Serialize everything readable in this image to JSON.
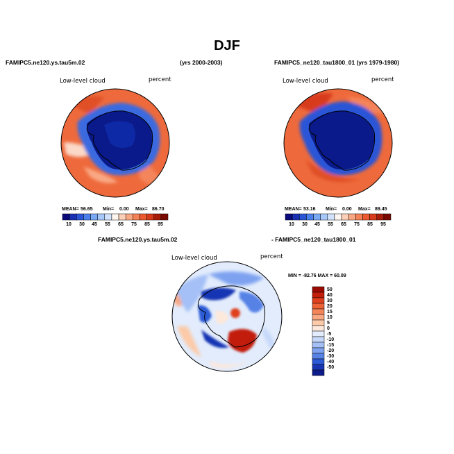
{
  "page": {
    "title": "DJF",
    "panel1": {
      "case": "FAMIPC5.ne120.ys.tau5m.02",
      "years": "(yrs 2000-2003)",
      "variable": "Low-level cloud",
      "units": "percent",
      "mean": "56.65",
      "min": "0.00",
      "max": "86.70"
    },
    "panel2": {
      "case": "FAMIPC5_ne120_tau1800_01 (yrs 1979-1980)",
      "variable": "Low-level cloud",
      "units": "percent",
      "mean": "53.16",
      "min": "0.00",
      "max": "89.45"
    },
    "panel3": {
      "case_a": "FAMIPC5.ne120.ys.tau5m.02",
      "case_b": "- FAMIPC5_ne120_tau1800_01",
      "variable": "Low-level cloud",
      "units": "percent",
      "minmax": "MIN = -82.76  MAX =  60.09"
    },
    "stat_labels": {
      "mean": "MEAN=",
      "min": "Min=",
      "max": "Max="
    },
    "colorbar_abs": {
      "ticks": [
        "10",
        "30",
        "45",
        "55",
        "65",
        "75",
        "85",
        "95"
      ],
      "colors": [
        "#0a0a7a",
        "#1a30b4",
        "#2a55d6",
        "#4a80ec",
        "#7aaaf6",
        "#a8c8fa",
        "#d2e2fc",
        "#fff6f0",
        "#fcd0b8",
        "#f9a884",
        "#f48256",
        "#ee5a30",
        "#d83a1c",
        "#a81c0a",
        "#7a0a00"
      ]
    },
    "colorbar_diff": {
      "ticks": [
        "50",
        "40",
        "30",
        "20",
        "15",
        "10",
        "5",
        "0",
        "-5",
        "-10",
        "-15",
        "-20",
        "-30",
        "-40",
        "-50"
      ],
      "colors": [
        "#9a0a00",
        "#c21e0a",
        "#e0401e",
        "#ee6238",
        "#f4845a",
        "#f8a882",
        "#fccaa8",
        "#fde8dc",
        "#e2ecfc",
        "#c6d8fa",
        "#a4c0f6",
        "#7ea2f0",
        "#5682e6",
        "#2c5ad6",
        "#1836b4",
        "#0c1a8a"
      ]
    }
  }
}
